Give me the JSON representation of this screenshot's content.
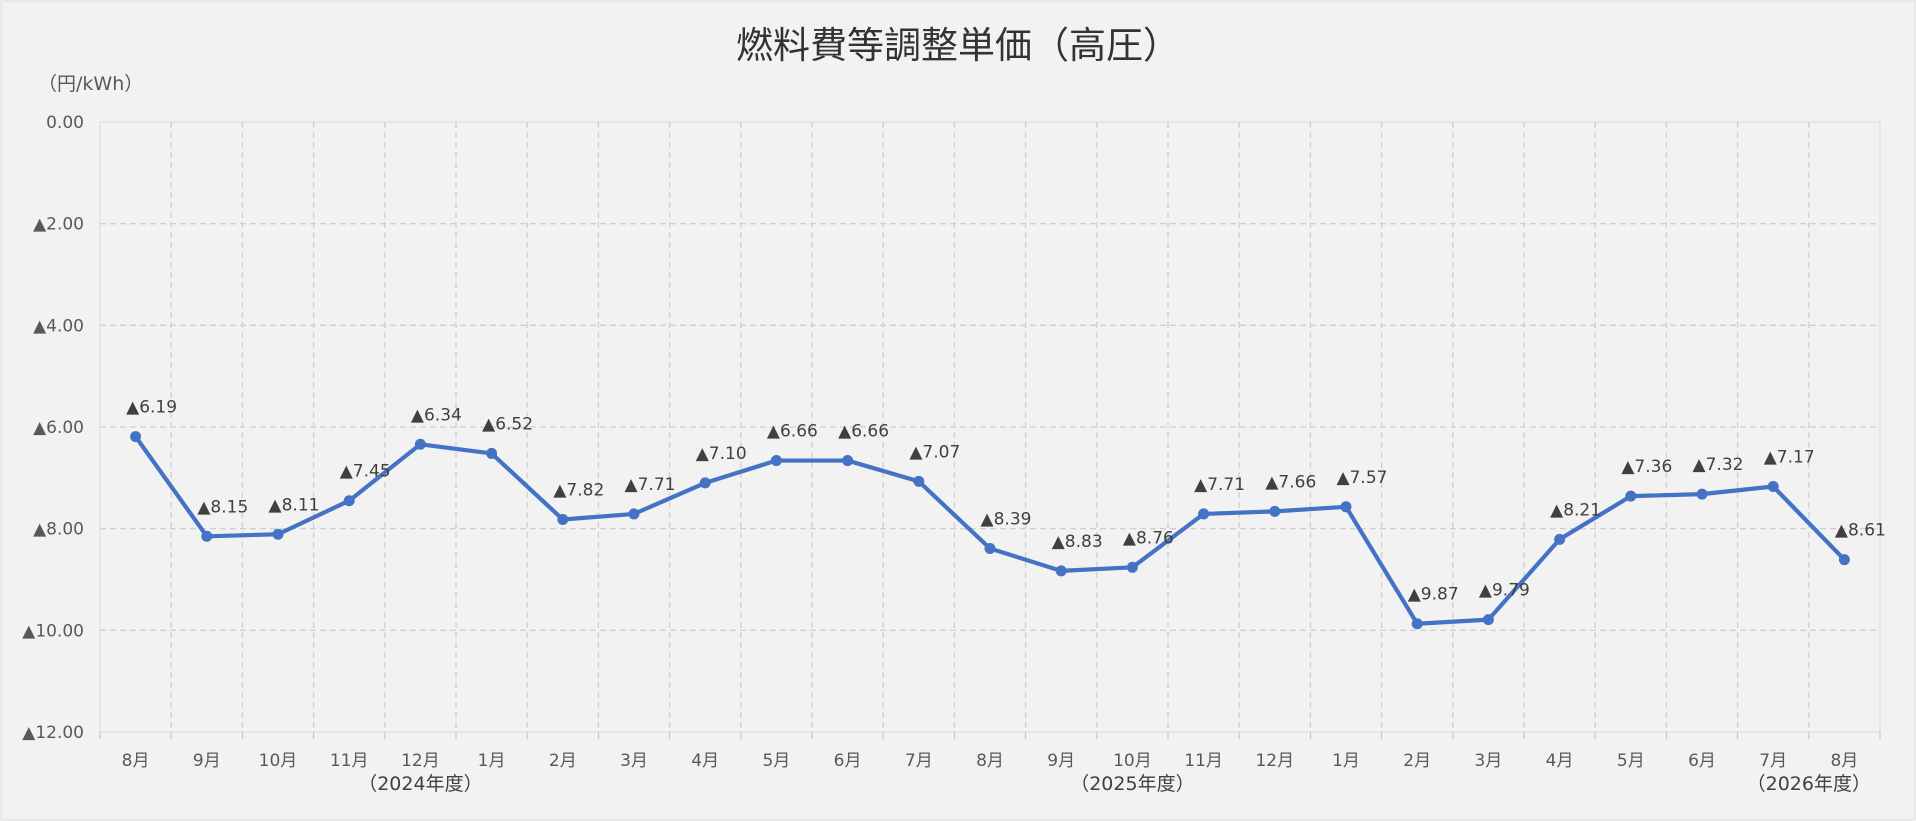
{
  "chart_data": {
    "type": "line",
    "title": "燃料費等調整単価（高圧）",
    "unit_label": "（円/kWh）",
    "ylim": [
      0,
      12
    ],
    "y_inverted": true,
    "y_ticks": [
      "0.00",
      "▲2.00",
      "▲4.00",
      "▲6.00",
      "▲8.00",
      "▲10.00",
      "▲12.00"
    ],
    "grid": true,
    "line_color": "#4472C4",
    "categories": [
      "8月",
      "9月",
      "10月",
      "11月",
      "12月",
      "1月",
      "2月",
      "3月",
      "4月",
      "5月",
      "6月",
      "7月",
      "8月",
      "9月",
      "10月",
      "11月",
      "12月",
      "1月",
      "2月",
      "3月",
      "4月",
      "5月",
      "6月",
      "7月",
      "8月"
    ],
    "values": [
      6.19,
      8.15,
      8.11,
      7.45,
      6.34,
      6.52,
      7.82,
      7.71,
      7.1,
      6.66,
      6.66,
      7.07,
      8.39,
      8.83,
      8.76,
      7.71,
      7.66,
      7.57,
      9.87,
      9.79,
      8.21,
      7.36,
      7.32,
      7.17,
      8.61
    ],
    "data_labels": [
      "▲6.19",
      "▲8.15",
      "▲8.11",
      "▲7.45",
      "▲6.34",
      "▲6.52",
      "▲7.82",
      "▲7.71",
      "▲7.10",
      "▲6.66",
      "▲6.66",
      "▲7.07",
      "▲8.39",
      "▲8.83",
      "▲8.76",
      "▲7.71",
      "▲7.66",
      "▲7.57",
      "▲9.87",
      "▲9.79",
      "▲8.21",
      "▲7.36",
      "▲7.32",
      "▲7.17",
      "▲8.61"
    ],
    "fiscal_years": [
      {
        "label": "（2024年度）",
        "index": 4
      },
      {
        "label": "（2025年度）",
        "index": 14
      },
      {
        "label": "（2026年度）",
        "index": 23.5
      }
    ]
  }
}
